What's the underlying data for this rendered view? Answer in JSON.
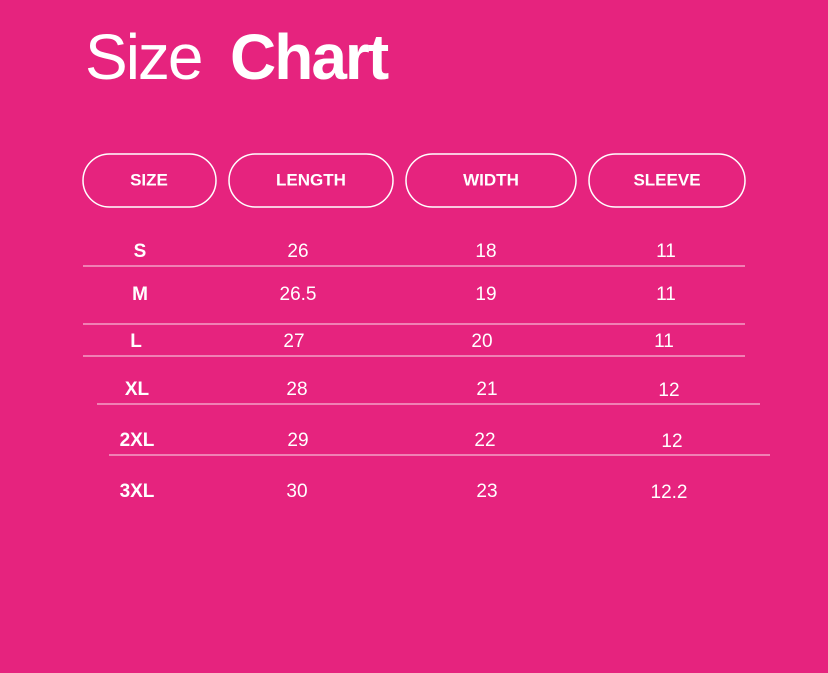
{
  "title": {
    "light": "Size",
    "bold": "Chart"
  },
  "table": {
    "header": [
      "SIZE",
      "LENGTH",
      "WIDTH",
      "SLEEVE"
    ],
    "rows": [
      [
        "S",
        "26",
        "18",
        "11"
      ],
      [
        "M",
        "26.5",
        "19",
        "11"
      ],
      [
        "L",
        "27",
        "20",
        "11"
      ],
      [
        "XL",
        "28",
        "21",
        "12"
      ],
      [
        "2XL",
        "29",
        "22",
        "12"
      ],
      [
        "3XL",
        "30",
        "23",
        "12.2"
      ]
    ]
  }
}
